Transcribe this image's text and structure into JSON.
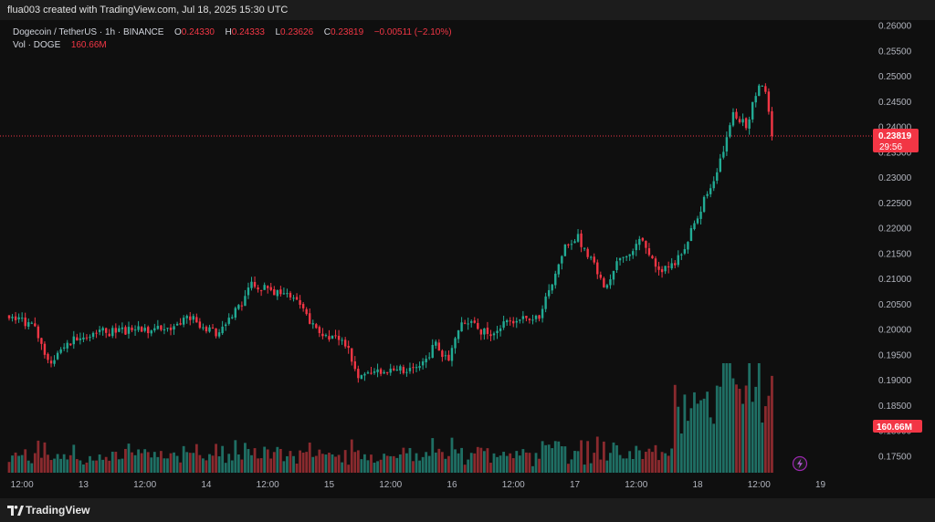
{
  "header": {
    "text": "flua003 created with TradingView.com, Jul 18, 2025 15:30 UTC"
  },
  "legend": {
    "symbol": "Dogecoin / TetherUS · 1h · BINANCE",
    "o_label": "O",
    "o_value": "0.24330",
    "h_label": "H",
    "h_value": "0.24333",
    "l_label": "L",
    "l_value": "0.23626",
    "c_label": "C",
    "c_value": "0.23819",
    "change": "−0.00511 (−2.10%)",
    "vol_label": "Vol · DOGE",
    "vol_value": "160.66M"
  },
  "badges": {
    "price": "0.23819",
    "countdown": "29:56",
    "volume": "160.66M"
  },
  "footer": {
    "logo_text": "TradingView"
  },
  "colors": {
    "up": "#22ab94",
    "down": "#f23645",
    "up_vol": "#1f6f64",
    "down_vol": "#8a2a2e",
    "background": "#0f0f0f"
  },
  "icons": {
    "logo": "tradingview-logo-icon",
    "lightning": "lightning-icon"
  },
  "chart_data": {
    "type": "candlestick",
    "title": "Dogecoin / TetherUS · 1h · BINANCE",
    "x_tick_labels": [
      "12:00",
      "13",
      "12:00",
      "14",
      "12:00",
      "15",
      "12:00",
      "16",
      "12:00",
      "17",
      "12:00",
      "18",
      "12:00",
      "19"
    ],
    "x_tick_candle_index": [
      4,
      23,
      42,
      61,
      80,
      99,
      118,
      137,
      156,
      175,
      194,
      213,
      232,
      251
    ],
    "y_ticks": [
      "0.26000",
      "0.25500",
      "0.25000",
      "0.24500",
      "0.24000",
      "0.23500",
      "0.23000",
      "0.22500",
      "0.22000",
      "0.21500",
      "0.21000",
      "0.20500",
      "0.20000",
      "0.19500",
      "0.19000",
      "0.18500",
      "0.18000",
      "0.17500"
    ],
    "ylim": [
      0.172,
      0.2615
    ],
    "last_price": 0.23819,
    "grid": false,
    "candle_waypoints": [
      [
        0,
        0.202
      ],
      [
        8,
        0.201
      ],
      [
        12,
        0.1935
      ],
      [
        20,
        0.198
      ],
      [
        28,
        0.1995
      ],
      [
        40,
        0.1998
      ],
      [
        48,
        0.2
      ],
      [
        56,
        0.2025
      ],
      [
        64,
        0.199
      ],
      [
        72,
        0.205
      ],
      [
        74,
        0.209
      ],
      [
        82,
        0.2075
      ],
      [
        88,
        0.206
      ],
      [
        96,
        0.199
      ],
      [
        104,
        0.1975
      ],
      [
        108,
        0.191
      ],
      [
        116,
        0.1915
      ],
      [
        124,
        0.1925
      ],
      [
        128,
        0.1935
      ],
      [
        132,
        0.197
      ],
      [
        136,
        0.1935
      ],
      [
        140,
        0.202
      ],
      [
        148,
        0.199
      ],
      [
        156,
        0.202
      ],
      [
        164,
        0.2025
      ],
      [
        168,
        0.2095
      ],
      [
        172,
        0.216
      ],
      [
        176,
        0.218
      ],
      [
        180,
        0.214
      ],
      [
        184,
        0.2085
      ],
      [
        188,
        0.213
      ],
      [
        196,
        0.218
      ],
      [
        200,
        0.212
      ],
      [
        204,
        0.212
      ],
      [
        208,
        0.215
      ],
      [
        212,
        0.221
      ],
      [
        216,
        0.227
      ],
      [
        220,
        0.233
      ],
      [
        224,
        0.243
      ],
      [
        228,
        0.24
      ],
      [
        232,
        0.249
      ],
      [
        234,
        0.247
      ],
      [
        236,
        0.2382
      ]
    ],
    "volume_label_value": "160.66M",
    "volume_max_M": 460
  }
}
